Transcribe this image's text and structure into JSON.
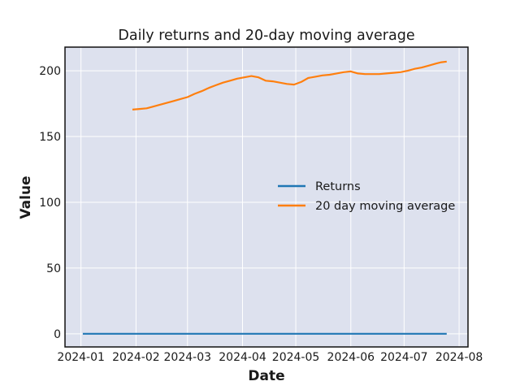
{
  "chart_data": {
    "type": "line",
    "title": "Daily returns and 20-day moving average",
    "xlabel": "Date",
    "ylabel": "Value",
    "xlim": [
      "2023-12-23",
      "2024-08-06"
    ],
    "ylim": [
      -10,
      218
    ],
    "x_ticks": [
      "2024-01-01",
      "2024-02-01",
      "2024-03-01",
      "2024-04-01",
      "2024-05-01",
      "2024-06-01",
      "2024-07-01",
      "2024-08-01"
    ],
    "x_tick_labels": [
      "2024-01",
      "2024-02",
      "2024-03",
      "2024-04",
      "2024-05",
      "2024-06",
      "2024-07",
      "2024-08"
    ],
    "y_ticks": [
      0,
      50,
      100,
      150,
      200
    ],
    "y_tick_labels": [
      "0",
      "50",
      "100",
      "150",
      "200"
    ],
    "grid": true,
    "background_color": "#dde1ee",
    "legend_position": "center-right",
    "series": [
      {
        "name": "Returns",
        "color": "#1f77b4",
        "x": [
          "2024-01-02",
          "2024-07-25"
        ],
        "values": [
          0,
          0
        ]
      },
      {
        "name": "20 day moving average",
        "color": "#ff7f0e",
        "x": [
          "2024-01-30",
          "2024-02-03",
          "2024-02-07",
          "2024-02-10",
          "2024-02-14",
          "2024-02-18",
          "2024-02-22",
          "2024-02-26",
          "2024-03-01",
          "2024-03-05",
          "2024-03-09",
          "2024-03-13",
          "2024-03-17",
          "2024-03-21",
          "2024-03-25",
          "2024-03-29",
          "2024-04-02",
          "2024-04-06",
          "2024-04-10",
          "2024-04-14",
          "2024-04-18",
          "2024-04-22",
          "2024-04-26",
          "2024-04-30",
          "2024-05-04",
          "2024-05-08",
          "2024-05-12",
          "2024-05-16",
          "2024-05-20",
          "2024-05-24",
          "2024-05-28",
          "2024-06-01",
          "2024-06-05",
          "2024-06-09",
          "2024-06-13",
          "2024-06-17",
          "2024-06-21",
          "2024-06-25",
          "2024-06-29",
          "2024-07-03",
          "2024-07-07",
          "2024-07-11",
          "2024-07-15",
          "2024-07-19",
          "2024-07-22",
          "2024-07-25"
        ],
        "values": [
          170.5,
          171.0,
          171.5,
          172.5,
          174.0,
          175.5,
          177.0,
          178.5,
          180.0,
          182.5,
          184.5,
          187.0,
          189.0,
          191.0,
          192.5,
          194.0,
          195.0,
          196.0,
          195.0,
          192.5,
          192.0,
          191.0,
          190.0,
          189.5,
          191.5,
          194.5,
          195.5,
          196.5,
          197.0,
          198.0,
          199.0,
          199.5,
          198.0,
          197.5,
          197.5,
          197.5,
          198.0,
          198.5,
          199.0,
          200.0,
          201.5,
          202.5,
          204.0,
          205.5,
          206.5,
          207.0
        ]
      }
    ]
  }
}
